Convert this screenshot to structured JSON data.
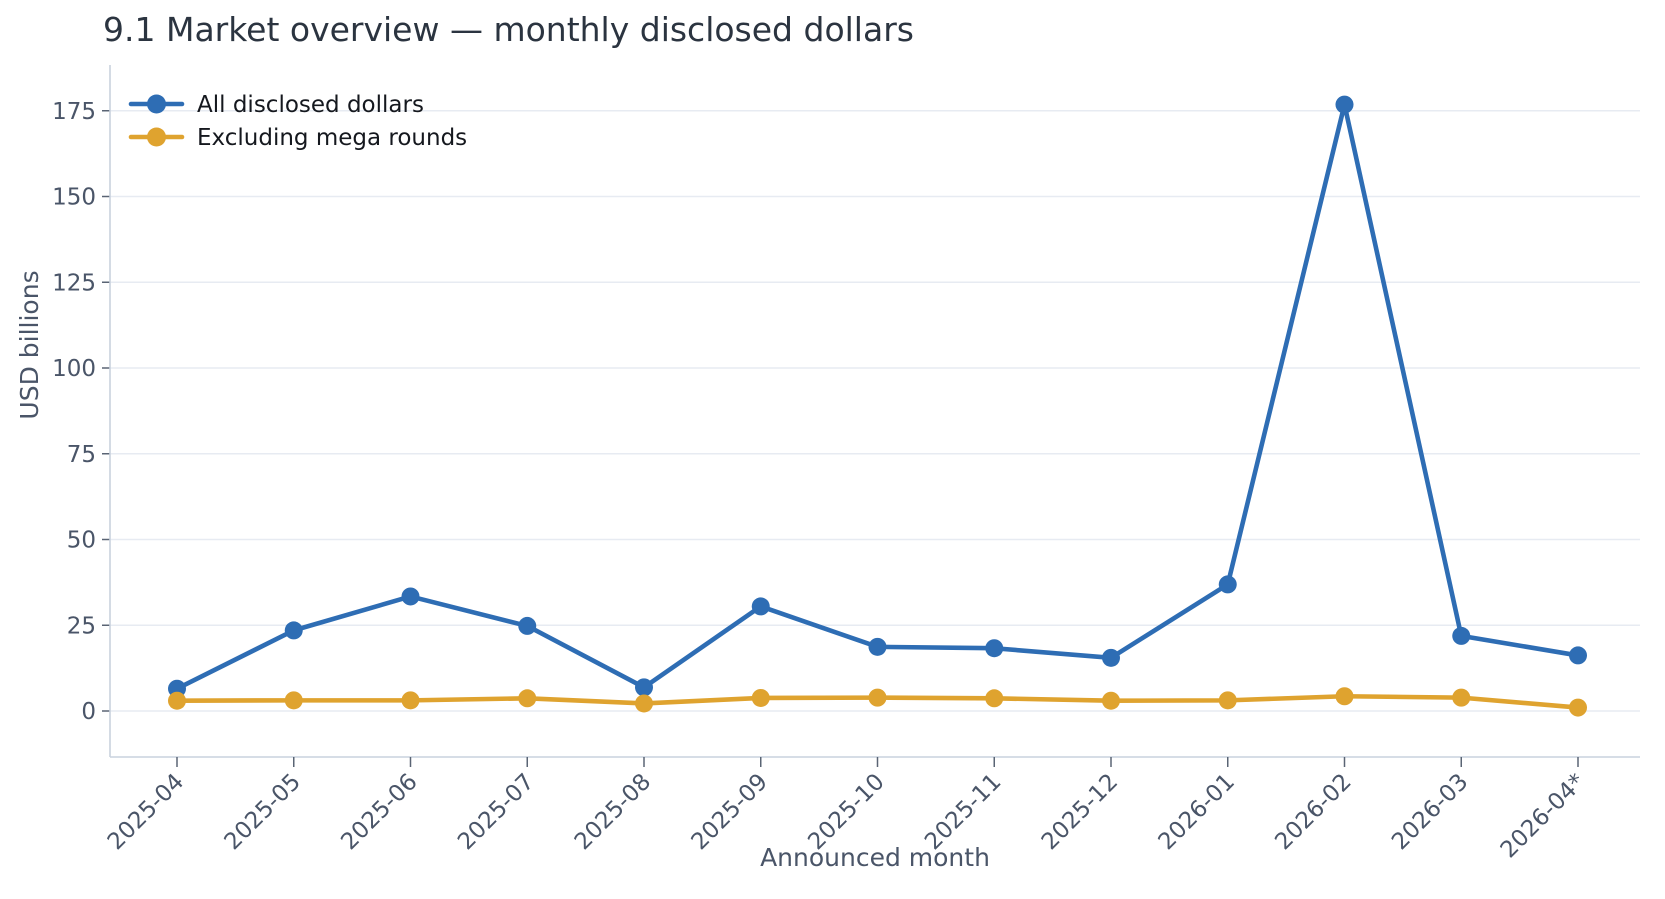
{
  "title": "9.1 Market overview — monthly disclosed dollars",
  "chart_data": {
    "type": "line",
    "title": "9.1 Market overview — monthly disclosed dollars",
    "xlabel": "Announced month",
    "ylabel": "USD billions",
    "categories": [
      "2025-04",
      "2025-05",
      "2025-06",
      "2025-07",
      "2025-08",
      "2025-09",
      "2025-10",
      "2025-11",
      "2025-12",
      "2026-01",
      "2026-02",
      "2026-03",
      "2026-04*"
    ],
    "series": [
      {
        "name": "All disclosed dollars",
        "color": "#2e6db4",
        "values": [
          6.5,
          23.5,
          33.4,
          24.8,
          6.9,
          30.5,
          18.7,
          18.3,
          15.5,
          36.9,
          176.8,
          21.9,
          16.2
        ]
      },
      {
        "name": "Excluding mega rounds",
        "color": "#dfa32f",
        "values": [
          3.0,
          3.1,
          3.1,
          3.7,
          2.2,
          3.8,
          3.9,
          3.7,
          3.0,
          3.1,
          4.3,
          3.9,
          1.0
        ]
      }
    ],
    "yticks": [
      0,
      25,
      50,
      75,
      100,
      125,
      150,
      175
    ],
    "ylim": [
      -13,
      190
    ],
    "grid": "horizontal",
    "legend_position": "upper-left",
    "legend_entries": [
      "All disclosed dollars",
      "Excluding mega rounds"
    ]
  }
}
